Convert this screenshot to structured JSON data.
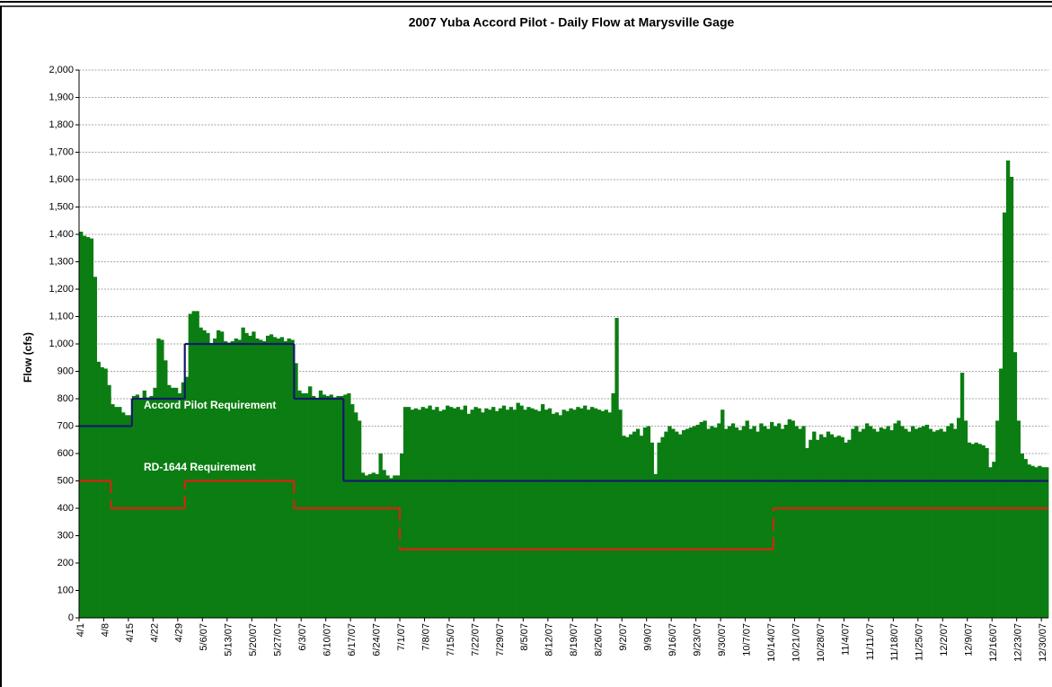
{
  "chart_data": {
    "type": "bar",
    "title": "2007 Yuba Accord Pilot - Daily Flow at Marysville Gage",
    "ylabel": "Flow (cfs)",
    "ylim": [
      0,
      2000
    ],
    "yticks": [
      0,
      100,
      200,
      300,
      400,
      500,
      600,
      700,
      800,
      900,
      {
        "value": 1000,
        "label": "1,000"
      },
      {
        "value": 1100,
        "label": "1,100"
      },
      {
        "value": 1200,
        "label": "1,200"
      },
      {
        "value": 1300,
        "label": "1,300"
      },
      {
        "value": 1400,
        "label": "1,400"
      },
      {
        "value": 1500,
        "label": "1,500"
      },
      {
        "value": 1600,
        "label": "1,600"
      },
      {
        "value": 1700,
        "label": "1,700"
      },
      {
        "value": 1800,
        "label": "1,800"
      },
      {
        "value": 1900,
        "label": "1,900"
      },
      {
        "value": 2000,
        "label": "2,000"
      }
    ],
    "grid": true,
    "color": "#0b7d12",
    "categories": [
      "4/1",
      null,
      null,
      null,
      null,
      null,
      null,
      "4/8",
      null,
      null,
      null,
      null,
      null,
      null,
      "4/15",
      null,
      null,
      null,
      null,
      null,
      null,
      "4/22",
      null,
      null,
      null,
      null,
      null,
      null,
      "4/29",
      null,
      null,
      null,
      null,
      null,
      null,
      "5/6/07",
      null,
      null,
      null,
      null,
      null,
      null,
      "5/13/07",
      null,
      null,
      null,
      null,
      null,
      null,
      "5/20/07",
      null,
      null,
      null,
      null,
      null,
      null,
      "5/27/07",
      null,
      null,
      null,
      null,
      null,
      null,
      "6/3/07",
      null,
      null,
      null,
      null,
      null,
      null,
      "6/10/07",
      null,
      null,
      null,
      null,
      null,
      null,
      "6/17/07",
      null,
      null,
      null,
      null,
      null,
      null,
      "6/24/07",
      null,
      null,
      null,
      null,
      null,
      null,
      "7/1/07",
      null,
      null,
      null,
      null,
      null,
      null,
      "7/8/07",
      null,
      null,
      null,
      null,
      null,
      null,
      "7/15/07",
      null,
      null,
      null,
      null,
      null,
      null,
      "7/22/07",
      null,
      null,
      null,
      null,
      null,
      null,
      "7/29/07",
      null,
      null,
      null,
      null,
      null,
      null,
      "8/5/07",
      null,
      null,
      null,
      null,
      null,
      null,
      "8/12/07",
      null,
      null,
      null,
      null,
      null,
      null,
      "8/19/07",
      null,
      null,
      null,
      null,
      null,
      null,
      "8/26/07",
      null,
      null,
      null,
      null,
      null,
      null,
      "9/2/07",
      null,
      null,
      null,
      null,
      null,
      null,
      "9/9/07",
      null,
      null,
      null,
      null,
      null,
      null,
      "9/16/07",
      null,
      null,
      null,
      null,
      null,
      null,
      "9/23/07",
      null,
      null,
      null,
      null,
      null,
      null,
      "9/30/07",
      null,
      null,
      null,
      null,
      null,
      null,
      "10/7/07",
      null,
      null,
      null,
      null,
      null,
      null,
      "10/14/07",
      null,
      null,
      null,
      null,
      null,
      null,
      "10/21/07",
      null,
      null,
      null,
      null,
      null,
      null,
      "10/28/07",
      null,
      null,
      null,
      null,
      null,
      null,
      "11/4/07",
      null,
      null,
      null,
      null,
      null,
      null,
      "11/11/07",
      null,
      null,
      null,
      null,
      null,
      null,
      "11/18/07",
      null,
      null,
      null,
      null,
      null,
      null,
      "11/25/07",
      null,
      null,
      null,
      null,
      null,
      null,
      "12/2/07",
      null,
      null,
      null,
      null,
      null,
      null,
      "12/9/07",
      null,
      null,
      null,
      null,
      null,
      null,
      "12/16/07",
      null,
      null,
      null,
      null,
      null,
      null,
      "12/23/07",
      null,
      null,
      null,
      null,
      null,
      null,
      "12/30/07",
      null
    ],
    "values": [
      1410,
      1395,
      1390,
      1385,
      1245,
      935,
      915,
      910,
      850,
      780,
      770,
      770,
      750,
      740,
      740,
      810,
      815,
      800,
      830,
      805,
      810,
      840,
      1020,
      1015,
      940,
      850,
      840,
      840,
      820,
      860,
      880,
      1110,
      1120,
      1120,
      1060,
      1050,
      1040,
      1000,
      1020,
      1050,
      1045,
      1010,
      1005,
      1010,
      1020,
      1015,
      1060,
      1040,
      1030,
      1045,
      1020,
      1015,
      1010,
      1030,
      1035,
      1025,
      1020,
      1025,
      1010,
      1020,
      1015,
      930,
      830,
      820,
      820,
      845,
      810,
      800,
      830,
      815,
      810,
      815,
      805,
      810,
      810,
      815,
      820,
      780,
      750,
      720,
      530,
      520,
      525,
      530,
      525,
      600,
      540,
      520,
      510,
      520,
      520,
      600,
      770,
      770,
      760,
      765,
      760,
      770,
      765,
      775,
      760,
      770,
      755,
      760,
      775,
      770,
      765,
      770,
      760,
      775,
      745,
      760,
      770,
      765,
      750,
      765,
      760,
      770,
      755,
      765,
      775,
      760,
      770,
      760,
      785,
      775,
      760,
      770,
      765,
      760,
      755,
      780,
      760,
      765,
      745,
      750,
      740,
      760,
      755,
      765,
      760,
      770,
      765,
      775,
      760,
      770,
      765,
      760,
      755,
      760,
      750,
      820,
      1095,
      760,
      665,
      660,
      670,
      680,
      690,
      665,
      695,
      700,
      640,
      525,
      640,
      660,
      680,
      700,
      690,
      680,
      670,
      685,
      690,
      695,
      700,
      705,
      715,
      720,
      690,
      700,
      695,
      710,
      760,
      690,
      700,
      710,
      695,
      685,
      700,
      720,
      690,
      700,
      680,
      710,
      700,
      690,
      715,
      700,
      710,
      690,
      705,
      725,
      720,
      700,
      690,
      700,
      620,
      650,
      680,
      650,
      670,
      660,
      680,
      670,
      660,
      665,
      660,
      640,
      650,
      690,
      700,
      680,
      690,
      710,
      700,
      690,
      680,
      695,
      690,
      700,
      685,
      710,
      720,
      700,
      690,
      680,
      700,
      690,
      695,
      700,
      705,
      690,
      680,
      685,
      690,
      680,
      700,
      710,
      690,
      730,
      895,
      720,
      640,
      635,
      640,
      635,
      630,
      620,
      550,
      570,
      720,
      910,
      1480,
      1670,
      1610,
      970,
      720,
      600,
      580,
      560,
      555,
      550,
      555,
      550,
      550
    ],
    "series": [
      {
        "name": "Accord Pilot Requirement",
        "color": "#14186a",
        "dash": false,
        "values": [
          700,
          700,
          700,
          700,
          700,
          700,
          700,
          700,
          700,
          700,
          700,
          700,
          700,
          700,
          700,
          800,
          800,
          800,
          800,
          800,
          800,
          800,
          800,
          800,
          800,
          800,
          800,
          800,
          800,
          800,
          1000,
          1000,
          1000,
          1000,
          1000,
          1000,
          1000,
          1000,
          1000,
          1000,
          1000,
          1000,
          1000,
          1000,
          1000,
          1000,
          1000,
          1000,
          1000,
          1000,
          1000,
          1000,
          1000,
          1000,
          1000,
          1000,
          1000,
          1000,
          1000,
          1000,
          1000,
          800,
          800,
          800,
          800,
          800,
          800,
          800,
          800,
          800,
          800,
          800,
          800,
          800,
          800,
          500,
          500,
          500,
          500,
          500,
          500,
          500,
          500,
          500,
          500,
          500,
          500,
          500,
          500,
          500,
          500,
          500,
          500,
          500,
          500,
          500,
          500,
          500,
          500,
          500,
          500,
          500,
          500,
          500,
          500,
          500,
          500,
          500,
          500,
          500,
          500,
          500,
          500,
          500,
          500,
          500,
          500,
          500,
          500,
          500,
          500,
          500,
          500,
          500,
          500,
          500,
          500,
          500,
          500,
          500,
          500,
          500,
          500,
          500,
          500,
          500,
          500,
          500,
          500,
          500,
          500,
          500,
          500,
          500,
          500,
          500,
          500,
          500,
          500,
          500,
          500,
          500,
          500,
          500,
          500,
          500,
          500,
          500,
          500,
          500,
          500,
          500,
          500,
          500,
          500,
          500,
          500,
          500,
          500,
          500,
          500,
          500,
          500,
          500,
          500,
          500,
          500,
          500,
          500,
          500,
          500,
          500,
          500,
          500,
          500,
          500,
          500,
          500,
          500,
          500,
          500,
          500,
          500,
          500,
          500,
          500,
          500,
          500,
          500,
          500,
          500,
          500,
          500,
          500,
          500,
          500,
          500,
          500,
          500,
          500,
          500,
          500,
          500,
          500,
          500,
          500,
          500,
          500,
          500,
          500,
          500,
          500,
          500,
          500,
          500,
          500,
          500,
          500,
          500,
          500,
          500,
          500,
          500,
          500,
          500,
          500,
          500,
          500,
          500,
          500,
          500,
          500,
          500,
          500,
          500,
          500,
          500,
          500,
          500,
          500,
          500,
          500,
          500,
          500,
          500,
          500,
          500,
          500,
          500,
          500,
          500,
          500,
          500,
          500,
          500,
          500,
          500,
          500,
          500,
          500,
          500,
          500,
          500,
          500,
          500
        ]
      },
      {
        "name": "RD-1644 Requirement",
        "color": "#cc2a10",
        "dash": true,
        "values": [
          500,
          500,
          500,
          500,
          500,
          500,
          500,
          500,
          500,
          400,
          400,
          400,
          400,
          400,
          400,
          400,
          400,
          400,
          400,
          400,
          400,
          400,
          400,
          400,
          400,
          400,
          400,
          400,
          400,
          400,
          500,
          500,
          500,
          500,
          500,
          500,
          500,
          500,
          500,
          500,
          500,
          500,
          500,
          500,
          500,
          500,
          500,
          500,
          500,
          500,
          500,
          500,
          500,
          500,
          500,
          500,
          500,
          500,
          500,
          500,
          500,
          400,
          400,
          400,
          400,
          400,
          400,
          400,
          400,
          400,
          400,
          400,
          400,
          400,
          400,
          400,
          400,
          400,
          400,
          400,
          400,
          400,
          400,
          400,
          400,
          400,
          400,
          400,
          400,
          400,
          400,
          250,
          250,
          250,
          250,
          250,
          250,
          250,
          250,
          250,
          250,
          250,
          250,
          250,
          250,
          250,
          250,
          250,
          250,
          250,
          250,
          250,
          250,
          250,
          250,
          250,
          250,
          250,
          250,
          250,
          250,
          250,
          250,
          250,
          250,
          250,
          250,
          250,
          250,
          250,
          250,
          250,
          250,
          250,
          250,
          250,
          250,
          250,
          250,
          250,
          250,
          250,
          250,
          250,
          250,
          250,
          250,
          250,
          250,
          250,
          250,
          250,
          250,
          250,
          250,
          250,
          250,
          250,
          250,
          250,
          250,
          250,
          250,
          250,
          250,
          250,
          250,
          250,
          250,
          250,
          250,
          250,
          250,
          250,
          250,
          250,
          250,
          250,
          250,
          250,
          250,
          250,
          250,
          250,
          250,
          250,
          250,
          250,
          250,
          250,
          250,
          250,
          250,
          250,
          250,
          250,
          250,
          400,
          400,
          400,
          400,
          400,
          400,
          400,
          400,
          400,
          400,
          400,
          400,
          400,
          400,
          400,
          400,
          400,
          400,
          400,
          400,
          400,
          400,
          400,
          400,
          400,
          400,
          400,
          400,
          400,
          400,
          400,
          400,
          400,
          400,
          400,
          400,
          400,
          400,
          400,
          400,
          400,
          400,
          400,
          400,
          400,
          400,
          400,
          400,
          400,
          400,
          400,
          400,
          400,
          400,
          400,
          400,
          400,
          400,
          400,
          400,
          400,
          400,
          400,
          400,
          400,
          400,
          400,
          400,
          400,
          400,
          400,
          400,
          400,
          400,
          400,
          400,
          400,
          400
        ]
      }
    ]
  }
}
